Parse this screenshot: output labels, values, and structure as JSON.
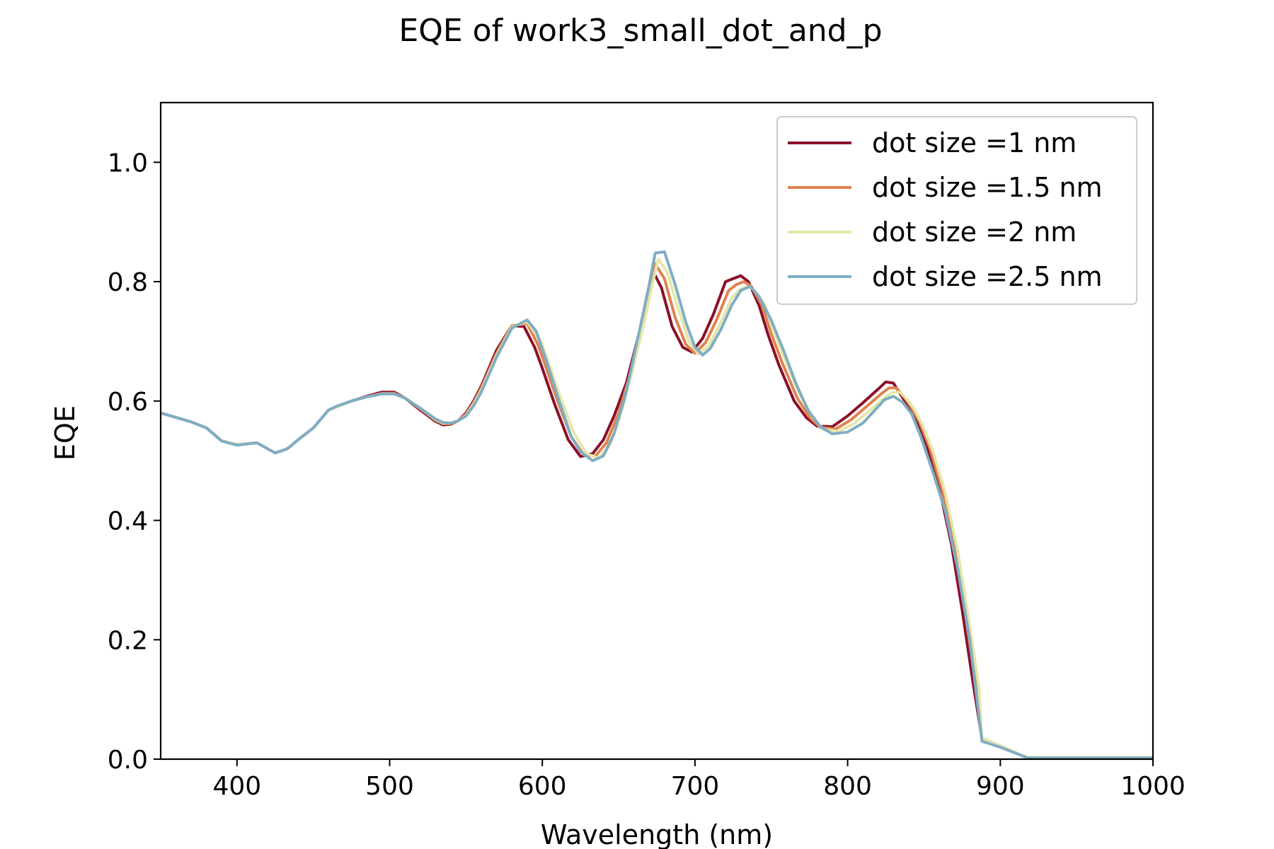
{
  "chart_data": {
    "type": "line",
    "title": "EQE of  work3_small_dot_and_p",
    "xlabel": "Wavelength (nm)",
    "ylabel": "EQE",
    "xlim": [
      350,
      1000
    ],
    "ylim": [
      0,
      1.1
    ],
    "xticks": [
      "400",
      "500",
      "600",
      "700",
      "800",
      "900",
      "1000"
    ],
    "yticks": [
      "0.0",
      "0.2",
      "0.4",
      "0.6",
      "0.8",
      "1.0"
    ],
    "grid": false,
    "legend_position": "top-right",
    "series": [
      {
        "name": "dot size =1 nm",
        "color": "#8b0f28",
        "x": [
          350,
          370,
          380,
          390,
          400,
          413,
          425,
          433,
          440,
          450,
          460,
          465,
          475,
          485,
          495,
          503,
          510,
          520,
          530,
          535,
          540,
          545,
          550,
          555,
          560,
          570,
          580,
          588,
          595,
          600,
          608,
          617,
          625,
          633,
          640,
          647,
          655,
          662,
          668,
          672,
          678,
          685,
          692,
          698,
          705,
          712,
          720,
          725,
          730,
          735,
          742,
          748,
          755,
          765,
          773,
          780,
          790,
          800,
          810,
          820,
          825,
          830,
          835,
          840,
          845,
          852,
          860,
          868,
          875,
          882,
          888,
          900,
          917,
          1000
        ],
        "y": [
          0.58,
          0.565,
          0.555,
          0.533,
          0.527,
          0.53,
          0.513,
          0.52,
          0.535,
          0.555,
          0.585,
          0.59,
          0.6,
          0.608,
          0.615,
          0.615,
          0.605,
          0.585,
          0.566,
          0.56,
          0.561,
          0.567,
          0.58,
          0.6,
          0.625,
          0.685,
          0.726,
          0.725,
          0.69,
          0.655,
          0.595,
          0.535,
          0.507,
          0.512,
          0.535,
          0.575,
          0.63,
          0.7,
          0.76,
          0.82,
          0.79,
          0.725,
          0.69,
          0.682,
          0.705,
          0.745,
          0.8,
          0.805,
          0.81,
          0.8,
          0.76,
          0.71,
          0.66,
          0.6,
          0.572,
          0.558,
          0.557,
          0.575,
          0.597,
          0.62,
          0.632,
          0.63,
          0.61,
          0.59,
          0.57,
          0.525,
          0.455,
          0.36,
          0.25,
          0.13,
          0.035,
          0.022,
          0.003,
          0.003
        ]
      },
      {
        "name": "dot size =1.5 nm",
        "color": "#e0824e",
        "x": [
          350,
          370,
          380,
          390,
          400,
          413,
          425,
          433,
          440,
          450,
          460,
          465,
          475,
          485,
          495,
          503,
          510,
          520,
          530,
          535,
          540,
          545,
          550,
          555,
          560,
          570,
          580,
          590,
          597,
          602,
          610,
          619,
          627,
          635,
          642,
          650,
          657,
          665,
          670,
          674,
          680,
          687,
          694,
          700,
          707,
          714,
          722,
          727,
          732,
          737,
          744,
          750,
          757,
          767,
          775,
          782,
          792,
          802,
          812,
          822,
          827,
          832,
          837,
          842,
          847,
          854,
          862,
          870,
          877,
          884,
          888,
          900,
          917,
          1000
        ],
        "y": [
          0.58,
          0.565,
          0.555,
          0.533,
          0.527,
          0.53,
          0.513,
          0.52,
          0.535,
          0.555,
          0.585,
          0.59,
          0.6,
          0.607,
          0.613,
          0.613,
          0.605,
          0.587,
          0.568,
          0.562,
          0.562,
          0.567,
          0.578,
          0.597,
          0.622,
          0.68,
          0.726,
          0.73,
          0.695,
          0.66,
          0.6,
          0.54,
          0.51,
          0.508,
          0.53,
          0.58,
          0.64,
          0.72,
          0.78,
          0.83,
          0.805,
          0.74,
          0.695,
          0.68,
          0.698,
          0.735,
          0.785,
          0.795,
          0.8,
          0.792,
          0.76,
          0.712,
          0.665,
          0.605,
          0.573,
          0.556,
          0.553,
          0.568,
          0.59,
          0.612,
          0.622,
          0.622,
          0.607,
          0.588,
          0.565,
          0.52,
          0.45,
          0.355,
          0.245,
          0.125,
          0.035,
          0.022,
          0.003,
          0.003
        ]
      },
      {
        "name": "dot size =2 nm",
        "color": "#e6e6a8",
        "x": [
          350,
          370,
          380,
          390,
          400,
          413,
          425,
          433,
          440,
          450,
          460,
          465,
          475,
          485,
          495,
          503,
          510,
          520,
          530,
          535,
          540,
          545,
          550,
          555,
          560,
          570,
          580,
          590,
          599,
          604,
          612,
          621,
          629,
          637,
          644,
          652,
          659,
          667,
          672,
          676,
          682,
          689,
          696,
          702,
          709,
          716,
          724,
          729,
          734,
          739,
          746,
          752,
          759,
          769,
          777,
          784,
          794,
          804,
          814,
          824,
          829,
          834,
          839,
          844,
          849,
          856,
          864,
          872,
          879,
          886,
          888,
          900,
          917,
          1000
        ],
        "y": [
          0.58,
          0.565,
          0.555,
          0.533,
          0.527,
          0.53,
          0.513,
          0.52,
          0.535,
          0.555,
          0.585,
          0.59,
          0.6,
          0.607,
          0.612,
          0.612,
          0.605,
          0.588,
          0.569,
          0.563,
          0.563,
          0.567,
          0.576,
          0.595,
          0.618,
          0.676,
          0.724,
          0.733,
          0.7,
          0.665,
          0.605,
          0.545,
          0.512,
          0.504,
          0.525,
          0.585,
          0.65,
          0.735,
          0.795,
          0.838,
          0.815,
          0.755,
          0.7,
          0.679,
          0.692,
          0.727,
          0.772,
          0.786,
          0.792,
          0.786,
          0.76,
          0.714,
          0.67,
          0.61,
          0.573,
          0.553,
          0.549,
          0.562,
          0.583,
          0.605,
          0.614,
          0.615,
          0.603,
          0.585,
          0.56,
          0.515,
          0.445,
          0.35,
          0.24,
          0.12,
          0.035,
          0.022,
          0.003,
          0.003
        ]
      },
      {
        "name": "dot size =2.5 nm",
        "color": "#7fadc4",
        "x": [
          350,
          370,
          380,
          390,
          400,
          413,
          425,
          433,
          440,
          450,
          460,
          465,
          475,
          485,
          495,
          503,
          510,
          520,
          530,
          535,
          540,
          545,
          550,
          555,
          560,
          570,
          580,
          590,
          596,
          603,
          611,
          619,
          625,
          633,
          640,
          647,
          654,
          663,
          670,
          674,
          680,
          687,
          694,
          700,
          705,
          710,
          717,
          724,
          730,
          736,
          742,
          750,
          758,
          766,
          774,
          782,
          790,
          800,
          810,
          818,
          824,
          830,
          836,
          842,
          848,
          856,
          864,
          872,
          880,
          888,
          900,
          918,
          1000
        ],
        "y": [
          0.58,
          0.565,
          0.555,
          0.533,
          0.526,
          0.53,
          0.513,
          0.52,
          0.535,
          0.555,
          0.585,
          0.591,
          0.6,
          0.607,
          0.612,
          0.612,
          0.605,
          0.588,
          0.57,
          0.564,
          0.563,
          0.567,
          0.575,
          0.592,
          0.615,
          0.673,
          0.722,
          0.736,
          0.717,
          0.665,
          0.6,
          0.54,
          0.515,
          0.5,
          0.508,
          0.545,
          0.605,
          0.71,
          0.795,
          0.848,
          0.85,
          0.795,
          0.732,
          0.69,
          0.677,
          0.688,
          0.72,
          0.76,
          0.785,
          0.792,
          0.775,
          0.735,
          0.685,
          0.63,
          0.585,
          0.557,
          0.545,
          0.548,
          0.563,
          0.585,
          0.602,
          0.608,
          0.598,
          0.578,
          0.54,
          0.48,
          0.415,
          0.32,
          0.2,
          0.03,
          0.02,
          0.002,
          0.002
        ]
      }
    ]
  }
}
